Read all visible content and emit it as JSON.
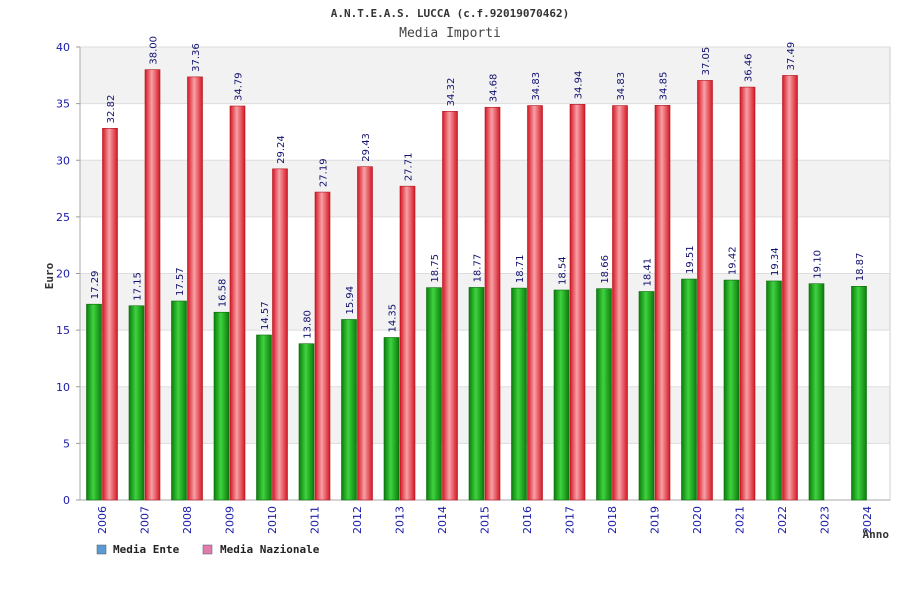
{
  "chart_data": {
    "type": "bar",
    "title": "A.N.T.E.A.S. LUCCA (c.f.92019070462)",
    "subtitle": "Media Importi",
    "xlabel": "Anno",
    "ylabel": "Euro",
    "ylim": [
      0,
      40
    ],
    "yticks": [
      0,
      5,
      10,
      15,
      20,
      25,
      30,
      35,
      40
    ],
    "legend_position": "bottom-left",
    "categories": [
      "2006",
      "2007",
      "2008",
      "2009",
      "2010",
      "2011",
      "2012",
      "2013",
      "2014",
      "2015",
      "2016",
      "2017",
      "2018",
      "2019",
      "2020",
      "2021",
      "2022",
      "2023",
      "2024"
    ],
    "series": [
      {
        "name": "Media Ente",
        "color": "#1aaa1a",
        "legend_color": "#5b9bd5",
        "values": [
          17.29,
          17.15,
          17.57,
          16.58,
          14.57,
          13.8,
          15.94,
          14.35,
          18.75,
          18.77,
          18.71,
          18.54,
          18.66,
          18.41,
          19.51,
          19.42,
          19.34,
          19.1,
          18.87
        ],
        "labels": [
          "17.29",
          "17.15",
          "17.57",
          "16.58",
          "14.57",
          "13.80",
          "15.94",
          "14.35",
          "18.75",
          "18.77",
          "18.71",
          "18.54",
          "18.66",
          "18.41",
          "19.51",
          "19.42",
          "19.34",
          "19.10",
          "18.87"
        ]
      },
      {
        "name": "Media Nazionale",
        "color": "#e8303c",
        "legend_color": "#e07cb0",
        "values": [
          32.82,
          38.0,
          37.36,
          34.79,
          29.24,
          27.19,
          29.43,
          27.71,
          34.32,
          34.68,
          34.83,
          34.94,
          34.83,
          34.85,
          37.05,
          36.46,
          37.49,
          null,
          null
        ],
        "labels": [
          "32.82",
          "38.00",
          "37.36",
          "34.79",
          "29.24",
          "27.19",
          "29.43",
          "27.71",
          "34.32",
          "34.68",
          "34.83",
          "34.94",
          "34.83",
          "34.85",
          "37.05",
          "36.46",
          "37.49",
          null,
          null
        ]
      }
    ]
  }
}
